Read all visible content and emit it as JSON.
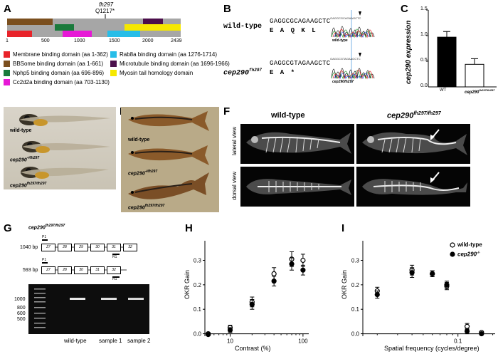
{
  "panels": {
    "A": "A",
    "B": "B",
    "C": "C",
    "D": "D",
    "E": "E",
    "F": "F",
    "G": "G",
    "H": "H",
    "I": "I"
  },
  "A": {
    "mutation_line1": "fh297",
    "mutation_line2": "Q1217*",
    "ticks": [
      "1",
      "500",
      "1000",
      "1500",
      "2000",
      "2439"
    ],
    "domains": [
      {
        "label": "Membrane binding domain (aa 1-362)",
        "color": "#e8232a"
      },
      {
        "label": "BBSome binding domain (aa 1-661)",
        "color": "#7b4f1f"
      },
      {
        "label": "Nphp5 binding domain (aa 696-896)",
        "color": "#1a7a3c"
      },
      {
        "label": "Cc2d2a binding domain (aa 703-1130)",
        "color": "#e619d6"
      },
      {
        "label": "Rab8a binding domain (aa 1276-1714)",
        "color": "#27bde8"
      },
      {
        "label": "Microtubule binding domain (aa 1696-1966)",
        "color": "#4b0f4b"
      },
      {
        "label": "Myosin tail homology domain",
        "color": "#f6e800"
      }
    ],
    "bar_color": "#a6a6a6"
  },
  "B": {
    "wt_label": "wild-type",
    "wt_seq": "GAGGCGCAGAAGCTC",
    "wt_aa": "E A Q K L",
    "mut_label": "cep290",
    "mut_sup": "fh297",
    "mut_seq": "GAGGCGTAGAAGCTC",
    "mut_aa": "E A *",
    "trace_wt_label": "wild-type",
    "trace_mut_label": "cep290fh297"
  },
  "C": {
    "ylabel": "cep290 expression",
    "wt_cat": "WT",
    "mut_cat": "cep290",
    "mut_sup": "fh297/fh297",
    "yticks": [
      "0.0",
      "0.5",
      "1.0",
      "1.5"
    ]
  },
  "D": {
    "labels": [
      "wild-type",
      "cep290",
      "cep290"
    ],
    "sups": [
      "",
      "+/fh297",
      "fh297/fh297"
    ]
  },
  "E": {
    "labels": [
      "wild-type",
      "cep290",
      "cep290"
    ],
    "sups": [
      "",
      "+/fh297",
      "fh297/fh297"
    ]
  },
  "F": {
    "col1": "wild-type",
    "col2": "cep290",
    "col2_sup": "fh297/fh297",
    "row1": "lateral view",
    "row2": "dorsal view"
  },
  "G": {
    "title": "cep290",
    "title_sup": "fh297/fh297",
    "bp1": "1040 bp",
    "bp2": "593 bp",
    "exons1": [
      "27",
      "28",
      "29",
      "30",
      "31",
      "32"
    ],
    "exons2": [
      "27",
      "28",
      "30",
      "31",
      "32"
    ],
    "p1": "P1",
    "r1": "R1",
    "ladder": [
      "1000",
      "800",
      "600",
      "500"
    ],
    "lanes": [
      "wild-type",
      "sample 1",
      "sample 2"
    ]
  },
  "chart_data": [
    {
      "type": "scatter",
      "panel": "C",
      "categories": [
        "WT",
        "cep290 fh297/fh297"
      ],
      "values": [
        0.97,
        0.44
      ],
      "errors": [
        0.11,
        0.11
      ],
      "ylabel": "cep290 expression",
      "ylim": [
        0,
        1.5
      ]
    },
    {
      "type": "scatter",
      "panel": "H",
      "xlabel": "Contrast (%)",
      "ylabel": "OKR Gain",
      "xscale": "log",
      "xticks": [
        "10",
        "100"
      ],
      "yticks": [
        "0.0",
        "0.1",
        "0.2",
        "0.3"
      ],
      "ylim": [
        -0.01,
        0.38
      ],
      "series": [
        {
          "name": "wild-type",
          "marker": "open",
          "x": [
            5,
            10,
            20,
            40,
            70,
            100
          ],
          "y": [
            0.0,
            0.025,
            0.13,
            0.245,
            0.305,
            0.3
          ],
          "err": [
            0.005,
            0.01,
            0.02,
            0.025,
            0.03,
            0.025
          ]
        },
        {
          "name": "cep290",
          "marker": "filled",
          "x": [
            5,
            10,
            20,
            40,
            70,
            100
          ],
          "y": [
            -0.003,
            0.015,
            0.12,
            0.215,
            0.285,
            0.26
          ],
          "err": [
            0.005,
            0.01,
            0.02,
            0.02,
            0.025,
            0.02
          ]
        }
      ]
    },
    {
      "type": "scatter",
      "panel": "I",
      "xlabel": "Spatial frequency (cycles/degree)",
      "ylabel": "OKR Gain",
      "xscale": "log",
      "xticks": [
        "0.1"
      ],
      "yticks": [
        "0.0",
        "0.1",
        "0.2",
        "0.3"
      ],
      "ylim": [
        -0.01,
        0.38
      ],
      "legend": "top-right",
      "series": [
        {
          "name": "wild-type",
          "marker": "open",
          "x": [
            0.02,
            0.04,
            0.06,
            0.08,
            0.12,
            0.16
          ],
          "y": [
            0.175,
            0.26,
            0.245,
            0.195,
            0.03,
            0.005
          ],
          "err": [
            0.015,
            0.02,
            0.012,
            0.015,
            0.012,
            0.005
          ]
        },
        {
          "name": "cep290",
          "sup": "-/-",
          "marker": "filled",
          "x": [
            0.02,
            0.04,
            0.06,
            0.08,
            0.12,
            0.16
          ],
          "y": [
            0.16,
            0.25,
            0.245,
            0.2,
            0.01,
            0.0
          ],
          "err": [
            0.015,
            0.02,
            0.012,
            0.015,
            0.01,
            0.004
          ]
        }
      ]
    }
  ]
}
